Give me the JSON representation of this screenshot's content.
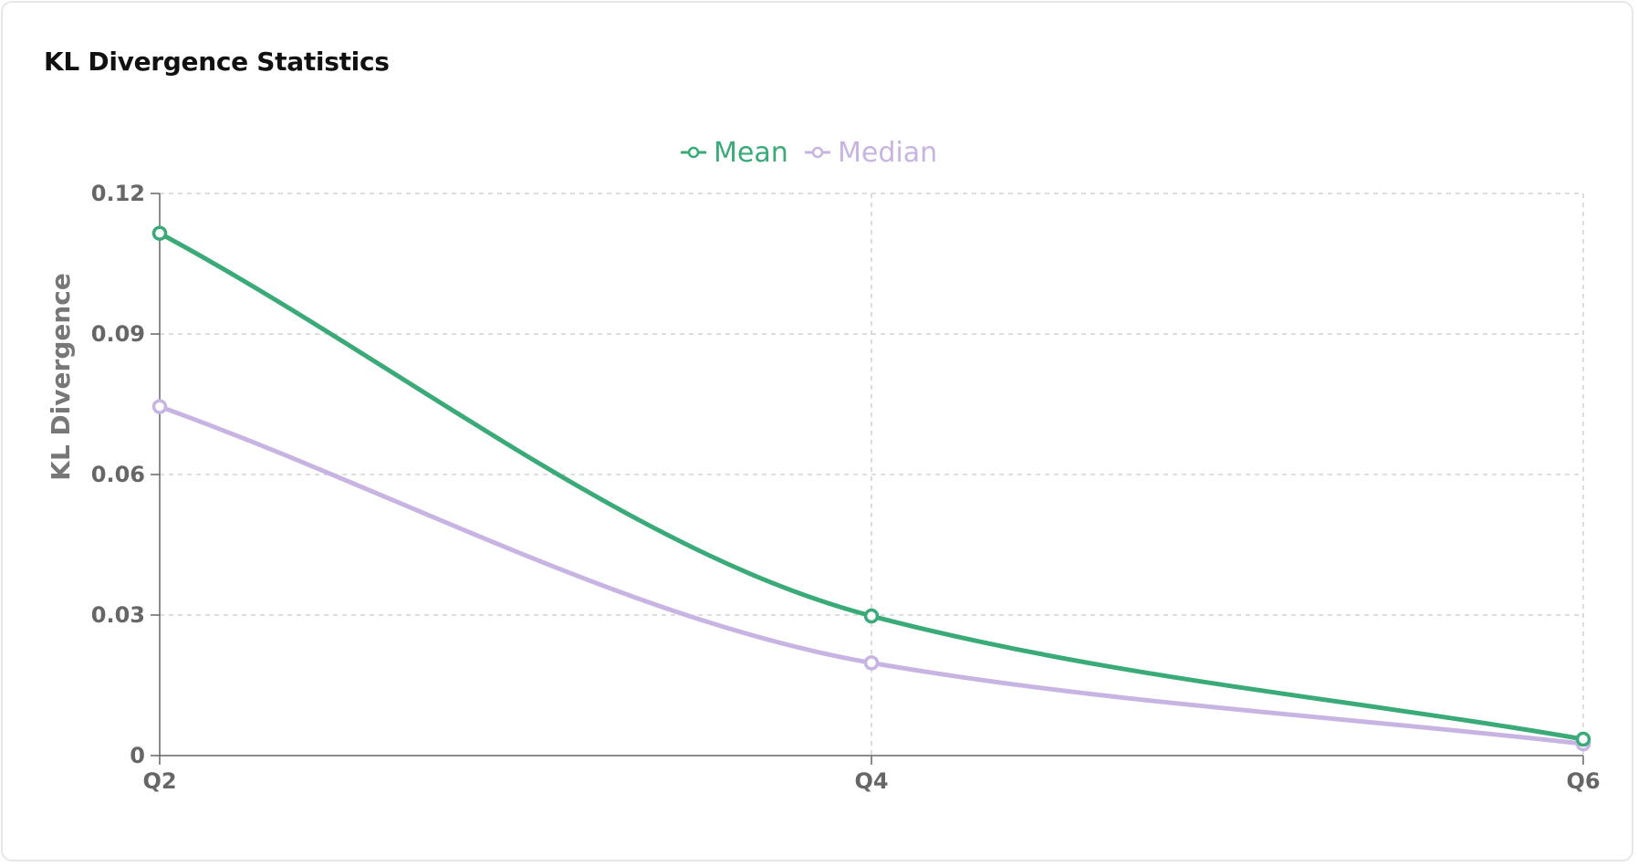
{
  "card": {
    "title": "KL Divergence Statistics"
  },
  "chart_data": {
    "type": "line",
    "title": "KL Divergence Statistics",
    "categories": [
      "Q2",
      "Q4",
      "Q6"
    ],
    "series": [
      {
        "name": "Mean",
        "color": "#3aaa78",
        "values": [
          0.1115,
          0.0298,
          0.0035
        ]
      },
      {
        "name": "Median",
        "color": "#c8b4e2",
        "values": [
          0.0745,
          0.0198,
          0.0025
        ]
      }
    ],
    "xlabel": "",
    "ylabel": "KL Divergence",
    "ylim": [
      0,
      0.12
    ],
    "yticks": [
      "0",
      "0.03",
      "0.06",
      "0.09",
      "0.12"
    ],
    "grid": true,
    "legend": "top-center"
  }
}
